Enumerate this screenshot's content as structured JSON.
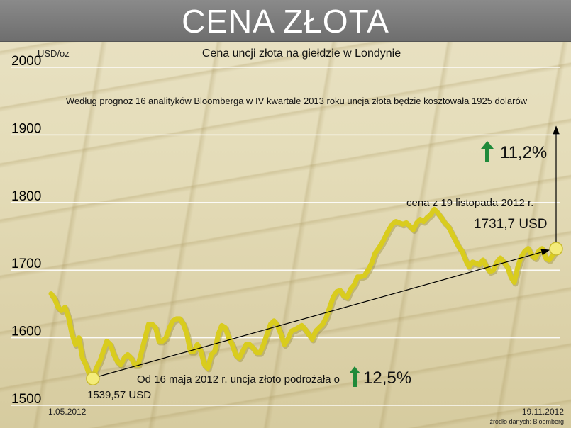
{
  "header": {
    "title": "CENA ZŁOTA"
  },
  "chart_data": {
    "type": "line",
    "title": "Cena uncji złota na giełdzie w Londynie",
    "ylabel": "USD/oz",
    "ylim": [
      1500,
      2000
    ],
    "yticks": [
      "1500",
      "1600",
      "1700",
      "1800",
      "1900",
      "2000"
    ],
    "x_start_label": "1.05.2012",
    "x_end_label": "19.11.2012",
    "source": "źródło danych: Bloomberg",
    "series": [
      {
        "values": [
          1665,
          1658,
          1645,
          1640,
          1645,
          1630,
          1605,
          1590,
          1600,
          1570,
          1560,
          1545,
          1540,
          1555,
          1565,
          1580,
          1595,
          1590,
          1575,
          1565,
          1560,
          1570,
          1575,
          1570,
          1560,
          1560,
          1580,
          1600,
          1620,
          1620,
          1615,
          1595,
          1595,
          1600,
          1615,
          1625,
          1628,
          1628,
          1620,
          1605,
          1580,
          1580,
          1590,
          1580,
          1560,
          1555,
          1575,
          1580,
          1605,
          1618,
          1615,
          1600,
          1590,
          1575,
          1570,
          1580,
          1590,
          1590,
          1585,
          1578,
          1578,
          1590,
          1605,
          1620,
          1625,
          1618,
          1605,
          1590,
          1598,
          1610,
          1612,
          1615,
          1618,
          1612,
          1605,
          1598,
          1610,
          1615,
          1620,
          1630,
          1645,
          1660,
          1668,
          1670,
          1662,
          1660,
          1672,
          1678,
          1690,
          1690,
          1692,
          1700,
          1710,
          1725,
          1732,
          1740,
          1750,
          1760,
          1768,
          1772,
          1770,
          1768,
          1770,
          1765,
          1760,
          1770,
          1775,
          1772,
          1778,
          1782,
          1790,
          1785,
          1778,
          1770,
          1765,
          1755,
          1745,
          1735,
          1728,
          1715,
          1705,
          1712,
          1710,
          1708,
          1715,
          1705,
          1698,
          1700,
          1712,
          1718,
          1712,
          1705,
          1690,
          1682,
          1705,
          1720,
          1728,
          1732,
          1722,
          1718,
          1728,
          1732,
          1718,
          1715,
          1722,
          1731.7
        ]
      }
    ],
    "start_point": {
      "label": "1539,57 USD",
      "value": 1539.57
    },
    "end_point": {
      "label": "1731,7 USD",
      "value": 1731.7
    },
    "forecast": {
      "text": "Według prognoz 16 analityków Bloomberga w IV kwartale 2013 roku uncja złota będzie kosztowała 1925 dolarów",
      "value": 1925
    },
    "annotations": {
      "end_date_note": "cena z 19 listopada 2012 r.",
      "growth_note": "Od 16 maja 2012 r. uncja złoto podrożała o",
      "growth_pct": "12,5%",
      "forecast_pct": "11,2%"
    },
    "colors": {
      "line": "#d9cc1e",
      "marker": "#f4ec7a",
      "arrow_up": "#1f8a3a",
      "header": "#777777"
    }
  }
}
